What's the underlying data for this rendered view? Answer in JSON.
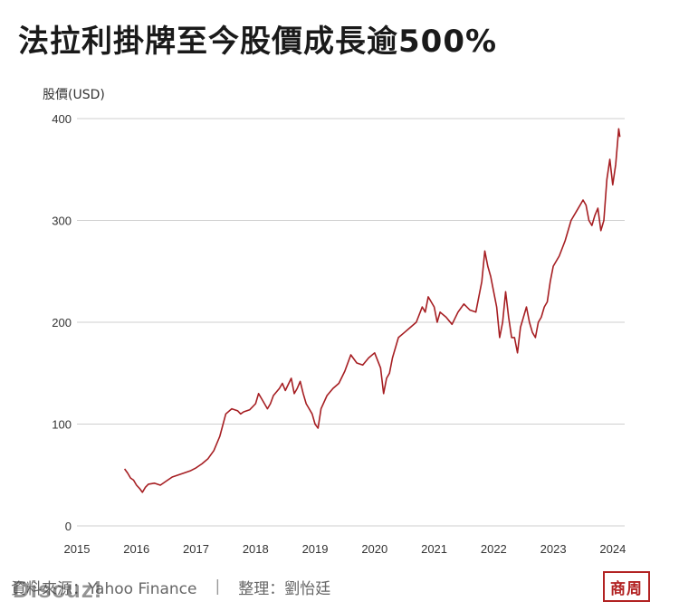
{
  "header": {
    "title": "法拉利掛牌至今股價成長逾500%"
  },
  "chart_data": {
    "type": "line",
    "title": "法拉利掛牌至今股價成長逾500%",
    "ylabel": "股價(USD)",
    "xlabel": "",
    "ylim": [
      0,
      400
    ],
    "yticks": [
      0,
      100,
      200,
      300,
      400
    ],
    "xlim": [
      2015,
      2024.2
    ],
    "xticks": [
      2015,
      2016,
      2017,
      2018,
      2019,
      2020,
      2021,
      2022,
      2023,
      2024
    ],
    "grid": "horizontal",
    "line_color": "#a61e22",
    "series": [
      {
        "x": [
          2015.8,
          2015.85,
          2015.9,
          2015.95,
          2016.0,
          2016.05,
          2016.1,
          2016.15,
          2016.2,
          2016.3,
          2016.4,
          2016.5,
          2016.6,
          2016.7,
          2016.8,
          2016.9,
          2017.0,
          2017.1,
          2017.2,
          2017.3,
          2017.4,
          2017.5,
          2017.6,
          2017.7,
          2017.75,
          2017.8,
          2017.9,
          2018.0,
          2018.05,
          2018.1,
          2018.2,
          2018.25,
          2018.3,
          2018.4,
          2018.45,
          2018.5,
          2018.6,
          2018.65,
          2018.7,
          2018.75,
          2018.8,
          2018.85,
          2018.9,
          2018.95,
          2019.0,
          2019.05,
          2019.1,
          2019.2,
          2019.3,
          2019.4,
          2019.5,
          2019.6,
          2019.7,
          2019.8,
          2019.9,
          2020.0,
          2020.1,
          2020.15,
          2020.2,
          2020.25,
          2020.3,
          2020.4,
          2020.5,
          2020.6,
          2020.7,
          2020.8,
          2020.85,
          2020.9,
          2021.0,
          2021.05,
          2021.1,
          2021.2,
          2021.3,
          2021.4,
          2021.5,
          2021.6,
          2021.7,
          2021.8,
          2021.85,
          2021.9,
          2021.95,
          2022.0,
          2022.05,
          2022.1,
          2022.15,
          2022.2,
          2022.25,
          2022.3,
          2022.35,
          2022.4,
          2022.45,
          2022.5,
          2022.55,
          2022.6,
          2022.65,
          2022.7,
          2022.75,
          2022.8,
          2022.85,
          2022.9,
          2022.95,
          2023.0,
          2023.1,
          2023.2,
          2023.3,
          2023.4,
          2023.5,
          2023.55,
          2023.6,
          2023.65,
          2023.7,
          2023.75,
          2023.8,
          2023.85,
          2023.9,
          2023.95,
          2024.0,
          2024.05,
          2024.1,
          2024.12
        ],
        "y": [
          56,
          52,
          47,
          45,
          40,
          37,
          33,
          38,
          41,
          42,
          40,
          44,
          48,
          50,
          52,
          54,
          57,
          61,
          66,
          74,
          88,
          110,
          115,
          113,
          110,
          112,
          114,
          120,
          130,
          125,
          115,
          120,
          128,
          135,
          140,
          133,
          145,
          130,
          135,
          142,
          130,
          120,
          115,
          110,
          100,
          96,
          115,
          128,
          135,
          140,
          152,
          168,
          160,
          158,
          165,
          170,
          155,
          130,
          145,
          150,
          165,
          185,
          190,
          195,
          200,
          215,
          210,
          225,
          215,
          200,
          210,
          205,
          198,
          210,
          218,
          212,
          210,
          240,
          270,
          255,
          245,
          230,
          215,
          185,
          200,
          230,
          205,
          185,
          185,
          170,
          195,
          205,
          215,
          200,
          190,
          185,
          200,
          205,
          215,
          220,
          240,
          255,
          265,
          280,
          300,
          310,
          320,
          315,
          300,
          295,
          305,
          312,
          290,
          300,
          340,
          360,
          335,
          355,
          390,
          382
        ]
      }
    ]
  },
  "footer": {
    "source": "資料來源：Yahoo Finance",
    "separator": "|",
    "editor": "整理：劉怡廷",
    "logo": "商周",
    "watermark": "Discuz!"
  }
}
